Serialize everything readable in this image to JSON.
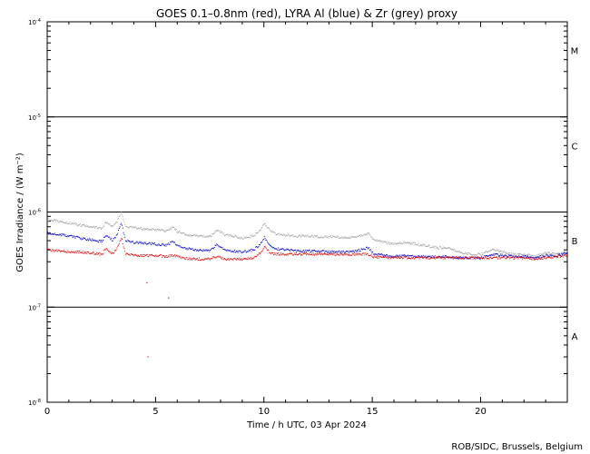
{
  "chart_data": {
    "type": "scatter",
    "title": "GOES 0.1–0.8nm (red), LYRA Al (blue) & Zr (grey) proxy",
    "xlabel": "Time / h UTC, 03 Apr 2024",
    "ylabel": "GOES Irradiance / (W m⁻²)",
    "credit": "ROB/SIDC, Brussels, Belgium",
    "xlim": [
      0,
      24
    ],
    "ylim": [
      1e-08,
      0.0001
    ],
    "ylog": true,
    "x_ticks": [
      {
        "value": 0,
        "label": "0"
      },
      {
        "value": 5,
        "label": "5"
      },
      {
        "value": 10,
        "label": "10"
      },
      {
        "value": 15,
        "label": "15"
      },
      {
        "value": 20,
        "label": "20"
      }
    ],
    "y_ticks": [
      {
        "value": 0.0001,
        "base": "10",
        "exp": "-4"
      },
      {
        "value": 1e-05,
        "base": "10",
        "exp": "-5"
      },
      {
        "value": 1e-06,
        "base": "10",
        "exp": "-6"
      },
      {
        "value": 1e-07,
        "base": "10",
        "exp": "-7"
      },
      {
        "value": 1e-08,
        "base": "10",
        "exp": "-8"
      }
    ],
    "flare_class_lines": [
      1e-05,
      1e-06,
      1e-07
    ],
    "flare_classes": [
      {
        "label": "M",
        "value": 5e-05
      },
      {
        "label": "C",
        "value": 5e-06
      },
      {
        "label": "B",
        "value": 5e-07
      },
      {
        "label": "A",
        "value": 5e-08
      }
    ],
    "series": [
      {
        "color": "#a0a0a0",
        "x": [
          0,
          0.5,
          1,
          1.5,
          2,
          2.5,
          2.7,
          3,
          3.2,
          3.4,
          3.6,
          4,
          4.5,
          5,
          5.5,
          5.8,
          6,
          6.2,
          6.5,
          7,
          7.5,
          7.8,
          8.2,
          8.5,
          9,
          9.5,
          9.8,
          10,
          10.3,
          10.6,
          11,
          11.5,
          12,
          12.5,
          13,
          13.5,
          14,
          14.5,
          14.8,
          15,
          15.5,
          16,
          16.5,
          17,
          17.5,
          18,
          18.5,
          19,
          19.5,
          20,
          20.5,
          21,
          21.5,
          22,
          22.5,
          23,
          23.5,
          24
        ],
        "y": [
          8.3e-07,
          8e-07,
          7.7e-07,
          7.3e-07,
          7e-07,
          6.7e-07,
          7.8e-07,
          7e-07,
          8e-07,
          9.8e-07,
          7e-07,
          6.8e-07,
          6.6e-07,
          6.5e-07,
          6.3e-07,
          6.9e-07,
          6.2e-07,
          6e-07,
          5.7e-07,
          5.6e-07,
          5.5e-07,
          6.5e-07,
          5.7e-07,
          5.6e-07,
          5.3e-07,
          5.6e-07,
          6.4e-07,
          7.5e-07,
          6.3e-07,
          5.8e-07,
          5.7e-07,
          5.6e-07,
          5.6e-07,
          5.5e-07,
          5.5e-07,
          5.4e-07,
          5.4e-07,
          5.7e-07,
          6e-07,
          5.2e-07,
          4.8e-07,
          4.6e-07,
          4.8e-07,
          4.6e-07,
          4.4e-07,
          4.2e-07,
          4.2e-07,
          3.8e-07,
          3.6e-07,
          3.6e-07,
          4e-07,
          3.8e-07,
          3.6e-07,
          3.6e-07,
          3.4e-07,
          3.7e-07,
          3.6e-07,
          3.8e-07
        ]
      },
      {
        "color": "#0000cc",
        "x": [
          0,
          0.5,
          1,
          1.5,
          2,
          2.5,
          2.7,
          3,
          3.2,
          3.4,
          3.6,
          4,
          4.5,
          5,
          5.5,
          5.8,
          6,
          6.2,
          6.5,
          7,
          7.5,
          7.8,
          8.2,
          8.5,
          9,
          9.5,
          9.8,
          10,
          10.3,
          10.6,
          11,
          11.5,
          12,
          12.5,
          13,
          13.5,
          14,
          14.5,
          14.8,
          15,
          15.5,
          16,
          16.5,
          17,
          17.5,
          18,
          18.5,
          19,
          19.5,
          20,
          20.5,
          21,
          21.5,
          22,
          22.5,
          23,
          23.5,
          24
        ],
        "y": [
          6e-07,
          5.8e-07,
          5.6e-07,
          5.3e-07,
          5.1e-07,
          4.9e-07,
          5.7e-07,
          5e-07,
          5.8e-07,
          7.6e-07,
          5e-07,
          4.8e-07,
          4.7e-07,
          4.6e-07,
          4.5e-07,
          4.9e-07,
          4.4e-07,
          4.3e-07,
          4.1e-07,
          4e-07,
          3.9e-07,
          4.5e-07,
          4e-07,
          3.9e-07,
          3.8e-07,
          4e-07,
          4.5e-07,
          5.4e-07,
          4.4e-07,
          4.1e-07,
          4e-07,
          3.9e-07,
          3.9e-07,
          3.9e-07,
          3.8e-07,
          3.8e-07,
          3.8e-07,
          4e-07,
          4.2e-07,
          3.7e-07,
          3.5e-07,
          3.4e-07,
          3.5e-07,
          3.4e-07,
          3.4e-07,
          3.4e-07,
          3.4e-07,
          3.3e-07,
          3.3e-07,
          3.3e-07,
          3.6e-07,
          3.5e-07,
          3.4e-07,
          3.4e-07,
          3.3e-07,
          3.5e-07,
          3.5e-07,
          3.7e-07
        ]
      },
      {
        "color": "#e00000",
        "x": [
          0,
          0.5,
          1,
          1.5,
          2,
          2.5,
          2.7,
          3,
          3.2,
          3.4,
          3.6,
          4,
          4.5,
          5,
          5.5,
          5.8,
          6,
          6.2,
          6.5,
          7,
          7.5,
          7.8,
          8.2,
          8.5,
          9,
          9.5,
          9.8,
          10,
          10.3,
          10.6,
          11,
          11.5,
          12,
          12.5,
          13,
          13.5,
          14,
          14.5,
          14.8,
          15,
          15.5,
          16,
          16.5,
          17,
          17.5,
          18,
          18.5,
          19,
          19.5,
          20,
          20.5,
          21,
          21.5,
          22,
          22.5,
          23,
          23.5,
          24
        ],
        "y": [
          4e-07,
          3.9e-07,
          3.8e-07,
          3.8e-07,
          3.7e-07,
          3.6e-07,
          4.1e-07,
          3.6e-07,
          4.2e-07,
          5.4e-07,
          3.6e-07,
          3.5e-07,
          3.5e-07,
          3.5e-07,
          3.4e-07,
          3.5e-07,
          3.4e-07,
          3.3e-07,
          3.2e-07,
          3.2e-07,
          3.2e-07,
          3.4e-07,
          3.2e-07,
          3.2e-07,
          3.2e-07,
          3.3e-07,
          3.7e-07,
          4.3e-07,
          3.7e-07,
          3.6e-07,
          3.6e-07,
          3.6e-07,
          3.6e-07,
          3.6e-07,
          3.6e-07,
          3.6e-07,
          3.6e-07,
          3.6e-07,
          3.6e-07,
          3.4e-07,
          3.3e-07,
          3.3e-07,
          3.3e-07,
          3.3e-07,
          3.3e-07,
          3.3e-07,
          3.3e-07,
          3.3e-07,
          3.3e-07,
          3.3e-07,
          3.3e-07,
          3.3e-07,
          3.3e-07,
          3.3e-07,
          3.2e-07,
          3.3e-07,
          3.4e-07,
          3.5e-07
        ]
      },
      {
        "color": "#e00000",
        "x": [
          4.6,
          4.65,
          5.6
        ],
        "y": [
          1.8e-07,
          3e-08,
          1.25e-07
        ]
      }
    ]
  }
}
